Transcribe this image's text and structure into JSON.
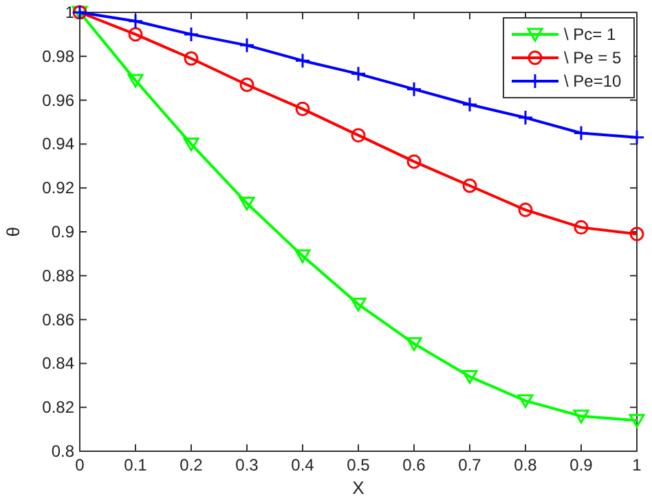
{
  "chart_data": {
    "type": "line",
    "xlabel": "X",
    "ylabel": "θ",
    "x": [
      0,
      0.1,
      0.2,
      0.3,
      0.4,
      0.5,
      0.6,
      0.7,
      0.8,
      0.9,
      1
    ],
    "series": [
      {
        "name": "\\ Pc= 1",
        "color": "#00ff00",
        "marker": "triangle",
        "values": [
          1,
          0.969,
          0.94,
          0.913,
          0.889,
          0.867,
          0.849,
          0.834,
          0.823,
          0.816,
          0.814
        ]
      },
      {
        "name": "\\ Pe = 5",
        "color": "#ff0000",
        "marker": "circle",
        "values": [
          1,
          0.99,
          0.979,
          0.967,
          0.956,
          0.944,
          0.932,
          0.921,
          0.91,
          0.902,
          0.899
        ]
      },
      {
        "name": "\\ Pe=10",
        "color": "#0000ff",
        "marker": "cross",
        "values": [
          1,
          0.996,
          0.99,
          0.985,
          0.978,
          0.972,
          0.965,
          0.958,
          0.952,
          0.945,
          0.943
        ]
      }
    ],
    "xlim": [
      0,
      1
    ],
    "xticks": [
      0,
      0.1,
      0.2,
      0.3,
      0.4,
      0.5,
      0.6,
      0.7,
      0.8,
      0.9,
      1
    ],
    "ylim": [
      0.8,
      1
    ],
    "yticks": [
      0.8,
      0.82,
      0.84,
      0.86,
      0.88,
      0.9,
      0.92,
      0.94,
      0.96,
      0.98,
      1
    ],
    "grid": false,
    "legend": "top right",
    "line_style": "solid"
  }
}
